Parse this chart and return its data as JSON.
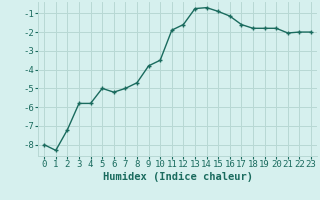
{
  "x": [
    0,
    1,
    2,
    3,
    4,
    5,
    6,
    7,
    8,
    9,
    10,
    11,
    12,
    13,
    14,
    15,
    16,
    17,
    18,
    19,
    20,
    21,
    22,
    23
  ],
  "y": [
    -8.0,
    -8.3,
    -7.2,
    -5.8,
    -5.8,
    -5.0,
    -5.2,
    -5.0,
    -4.7,
    -3.8,
    -3.5,
    -1.9,
    -1.6,
    -0.75,
    -0.7,
    -0.9,
    -1.15,
    -1.6,
    -1.8,
    -1.8,
    -1.8,
    -2.05,
    -2.0,
    -2.0
  ],
  "xlabel": "Humidex (Indice chaleur)",
  "line_color": "#1a6b5e",
  "marker": "+",
  "marker_color": "#1a6b5e",
  "bg_color": "#d6f0ee",
  "grid_color": "#b8d8d4",
  "tick_color": "#1a6b5e",
  "ylim": [
    -8.6,
    -0.4
  ],
  "xlim": [
    -0.5,
    23.5
  ],
  "yticks": [
    -8,
    -7,
    -6,
    -5,
    -4,
    -3,
    -2,
    -1
  ],
  "xlabel_fontsize": 7.5,
  "tick_fontsize": 6.5,
  "linewidth": 1.0,
  "markersize": 3.5
}
